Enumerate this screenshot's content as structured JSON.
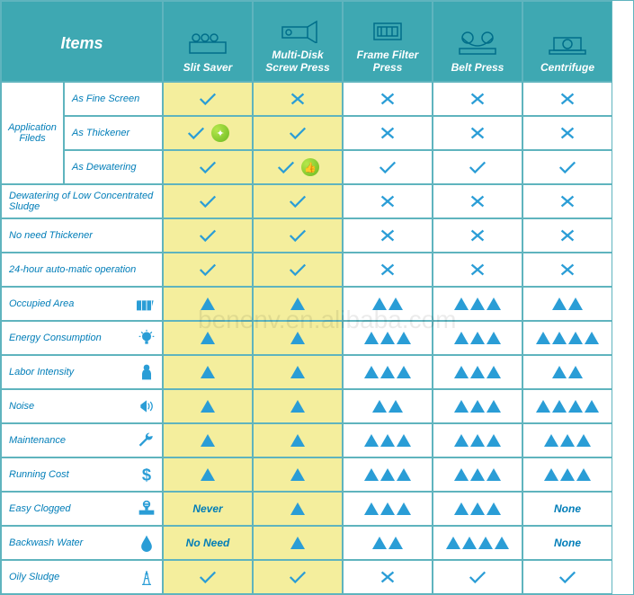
{
  "watermark": "benenv.en.alibaba.com",
  "header": {
    "items": "Items",
    "cols": [
      "Slit Saver",
      "Multi-Disk Screw Press",
      "Frame Filter Press",
      "Belt Press",
      "Centrifuge"
    ]
  },
  "colors": {
    "header_bg": "#3ea8b2",
    "border": "#5fb4be",
    "highlight_bg": "#f4ee9d",
    "mark": "#2a9dd6",
    "text": "#007db8"
  },
  "category_label": "Application Fileds",
  "rows": [
    {
      "label": "As Fine Screen",
      "icon": null,
      "cells": [
        {
          "t": "check"
        },
        {
          "t": "cross"
        },
        {
          "t": "cross"
        },
        {
          "t": "cross"
        },
        {
          "t": "cross"
        }
      ]
    },
    {
      "label": "As Thickener",
      "icon": null,
      "cells": [
        {
          "t": "check",
          "badge": "flame"
        },
        {
          "t": "check"
        },
        {
          "t": "cross"
        },
        {
          "t": "cross"
        },
        {
          "t": "cross"
        }
      ]
    },
    {
      "label": "As Dewatering",
      "icon": null,
      "cells": [
        {
          "t": "check"
        },
        {
          "t": "check",
          "badge": "thumb"
        },
        {
          "t": "check"
        },
        {
          "t": "check"
        },
        {
          "t": "check"
        }
      ]
    },
    {
      "label": "Dewatering of Low Concentrated Sludge",
      "icon": null,
      "span": true,
      "cells": [
        {
          "t": "check"
        },
        {
          "t": "check"
        },
        {
          "t": "cross"
        },
        {
          "t": "cross"
        },
        {
          "t": "cross"
        }
      ]
    },
    {
      "label": "No need Thickener",
      "icon": null,
      "span": true,
      "cells": [
        {
          "t": "check"
        },
        {
          "t": "check"
        },
        {
          "t": "cross"
        },
        {
          "t": "cross"
        },
        {
          "t": "cross"
        }
      ]
    },
    {
      "label": "24-hour auto-matic operation",
      "icon": null,
      "span": true,
      "cells": [
        {
          "t": "check"
        },
        {
          "t": "check"
        },
        {
          "t": "cross"
        },
        {
          "t": "cross"
        },
        {
          "t": "cross"
        }
      ]
    },
    {
      "label": "Occupied Area",
      "icon": "panel",
      "span": true,
      "cells": [
        {
          "t": "tri",
          "n": 1
        },
        {
          "t": "tri",
          "n": 1
        },
        {
          "t": "tri",
          "n": 2
        },
        {
          "t": "tri",
          "n": 3
        },
        {
          "t": "tri",
          "n": 2
        }
      ]
    },
    {
      "label": "Energy Consumption",
      "icon": "bulb",
      "span": true,
      "cells": [
        {
          "t": "tri",
          "n": 1
        },
        {
          "t": "tri",
          "n": 1
        },
        {
          "t": "tri",
          "n": 3
        },
        {
          "t": "tri",
          "n": 3
        },
        {
          "t": "tri",
          "n": 4
        }
      ]
    },
    {
      "label": "Labor Intensity",
      "icon": "person",
      "span": true,
      "cells": [
        {
          "t": "tri",
          "n": 1
        },
        {
          "t": "tri",
          "n": 1
        },
        {
          "t": "tri",
          "n": 3
        },
        {
          "t": "tri",
          "n": 3
        },
        {
          "t": "tri",
          "n": 2
        }
      ]
    },
    {
      "label": "Noise",
      "icon": "horn",
      "span": true,
      "cells": [
        {
          "t": "tri",
          "n": 1
        },
        {
          "t": "tri",
          "n": 1
        },
        {
          "t": "tri",
          "n": 2
        },
        {
          "t": "tri",
          "n": 3
        },
        {
          "t": "tri",
          "n": 4
        }
      ]
    },
    {
      "label": "Maintenance",
      "icon": "wrench",
      "span": true,
      "cells": [
        {
          "t": "tri",
          "n": 1
        },
        {
          "t": "tri",
          "n": 1
        },
        {
          "t": "tri",
          "n": 3
        },
        {
          "t": "tri",
          "n": 3
        },
        {
          "t": "tri",
          "n": 3
        }
      ]
    },
    {
      "label": "Running Cost",
      "icon": "dollar",
      "span": true,
      "cells": [
        {
          "t": "tri",
          "n": 1
        },
        {
          "t": "tri",
          "n": 1
        },
        {
          "t": "tri",
          "n": 3
        },
        {
          "t": "tri",
          "n": 3
        },
        {
          "t": "tri",
          "n": 3
        }
      ]
    },
    {
      "label": "Easy Clogged",
      "icon": "valve",
      "span": true,
      "cells": [
        {
          "t": "text",
          "v": "Never"
        },
        {
          "t": "tri",
          "n": 1
        },
        {
          "t": "tri",
          "n": 3
        },
        {
          "t": "tri",
          "n": 3
        },
        {
          "t": "text",
          "v": "None"
        }
      ]
    },
    {
      "label": "Backwash Water",
      "icon": "drop",
      "span": true,
      "cells": [
        {
          "t": "text",
          "v": "No Need"
        },
        {
          "t": "tri",
          "n": 1
        },
        {
          "t": "tri",
          "n": 2
        },
        {
          "t": "tri",
          "n": 4
        },
        {
          "t": "text",
          "v": "None"
        }
      ]
    },
    {
      "label": "Oily Sludge",
      "icon": "rig",
      "span": true,
      "cells": [
        {
          "t": "check"
        },
        {
          "t": "check"
        },
        {
          "t": "cross"
        },
        {
          "t": "check"
        },
        {
          "t": "check"
        }
      ]
    }
  ]
}
